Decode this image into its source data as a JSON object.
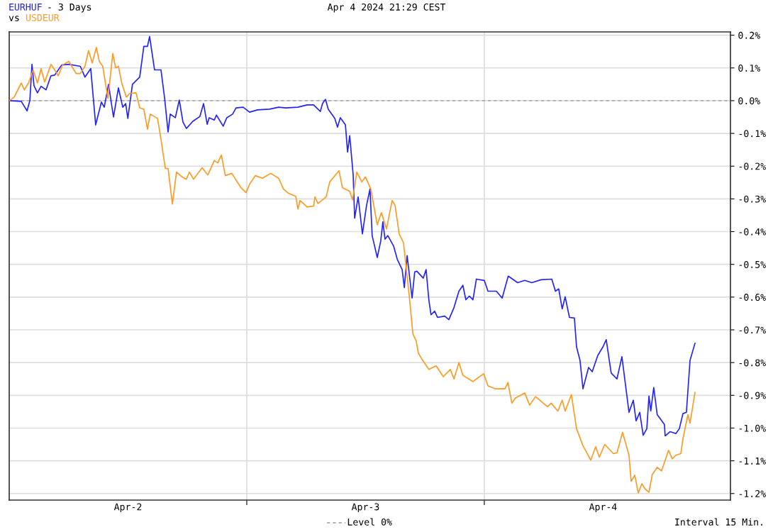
{
  "chart_data": {
    "type": "line",
    "title": "- 3 Days",
    "subtitle": "vs",
    "annotations": [
      "Apr 4 2024 21:29 CEST",
      "Interval 15 Min."
    ],
    "xlim": [
      "2024-04-02T00:00",
      "2024-04-05T00:52"
    ],
    "ylim": [
      -1.22,
      0.21
    ],
    "xticks": [
      {
        "value": "2024-04-02T12:00",
        "label": "Apr-2"
      },
      {
        "value": "2024-04-03T00:00",
        "label": null
      },
      {
        "value": "2024-04-03T12:00",
        "label": "Apr-3"
      },
      {
        "value": "2024-04-04T00:00",
        "label": null
      },
      {
        "value": "2024-04-04T12:00",
        "label": "Apr-4"
      }
    ],
    "yticks": [
      {
        "value": 0.2,
        "label": "0.2%"
      },
      {
        "value": 0.1,
        "label": "0.1%"
      },
      {
        "value": 0,
        "label": "0.0%"
      },
      {
        "value": -0.1,
        "label": "-0.1%"
      },
      {
        "value": -0.2,
        "label": "-0.2%"
      },
      {
        "value": -0.3,
        "label": "-0.3%"
      },
      {
        "value": -0.4,
        "label": "-0.4%"
      },
      {
        "value": -0.5,
        "label": "-0.5%"
      },
      {
        "value": -0.6,
        "label": "-0.6%"
      },
      {
        "value": -0.7,
        "label": "-0.7%"
      },
      {
        "value": -0.8,
        "label": "-0.8%"
      },
      {
        "value": -0.9,
        "label": "-0.9%"
      },
      {
        "value": -1.0,
        "label": "-1.0%"
      },
      {
        "value": -1.1,
        "label": "-1.1%"
      },
      {
        "value": -1.2,
        "label": "-1.2%"
      }
    ],
    "grid": true,
    "marker": "none",
    "line_style": "solid",
    "ref_lines": [
      {
        "axis": "y",
        "value": 0,
        "label": "Level 0%",
        "color": "#999999",
        "line_style": "dashed"
      }
    ],
    "series": [
      {
        "name": "EURHUF",
        "color": "#2222ff",
        "x": [
          "2024-04-02T00:00",
          "2024-04-02T01:13",
          "2024-04-02T01:48",
          "2024-04-02T02:05",
          "2024-04-02T02:18",
          "2024-04-02T02:30",
          "2024-04-02T02:51",
          "2024-04-02T03:13",
          "2024-04-02T03:43",
          "2024-04-02T04:13",
          "2024-04-02T04:35",
          "2024-04-02T05:18",
          "2024-04-02T06:01",
          "2024-04-02T07:11",
          "2024-04-02T07:39",
          "2024-04-02T08:14",
          "2024-04-02T08:44",
          "2024-04-02T09:19",
          "2024-04-02T09:36",
          "2024-04-02T10:02",
          "2024-04-02T10:32",
          "2024-04-02T11:02",
          "2024-04-02T11:28",
          "2024-04-02T11:46",
          "2024-04-02T11:59",
          "2024-04-02T12:27",
          "2024-04-02T13:11",
          "2024-04-02T13:36",
          "2024-04-02T13:58",
          "2024-04-02T14:11",
          "2024-04-02T14:41",
          "2024-04-02T15:20",
          "2024-04-02T15:42",
          "2024-04-02T16:03",
          "2024-04-02T16:16",
          "2024-04-02T16:47",
          "2024-04-02T17:11",
          "2024-04-02T17:33",
          "2024-04-02T17:54",
          "2024-04-02T18:33",
          "2024-04-02T19:16",
          "2024-04-02T19:38",
          "2024-04-02T20:00",
          "2024-04-02T20:12",
          "2024-04-02T20:43",
          "2024-04-02T20:56",
          "2024-04-02T21:37",
          "2024-04-02T21:59",
          "2024-04-02T22:34",
          "2024-04-02T22:55",
          "2024-04-02T23:38",
          "2024-04-03T00:17",
          "2024-04-03T01:05",
          "2024-04-03T02:18",
          "2024-04-03T03:13",
          "2024-04-03T03:56",
          "2024-04-03T05:10",
          "2024-04-03T06:06",
          "2024-04-03T06:45",
          "2024-04-03T07:26",
          "2024-04-03T07:39",
          "2024-04-03T07:57",
          "2024-04-03T08:14",
          "2024-04-03T08:53",
          "2024-04-03T09:10",
          "2024-04-03T09:27",
          "2024-04-03T09:58",
          "2024-04-03T10:11",
          "2024-04-03T10:24",
          "2024-04-03T10:45",
          "2024-04-03T10:54",
          "2024-04-03T11:15",
          "2024-04-03T11:41",
          "2024-04-03T12:06",
          "2024-04-03T12:27",
          "2024-04-03T12:40",
          "2024-04-03T13:11",
          "2024-04-03T13:32",
          "2024-04-03T13:45",
          "2024-04-03T13:58",
          "2024-04-03T14:15",
          "2024-04-03T14:50",
          "2024-04-03T15:12",
          "2024-04-03T15:42",
          "2024-04-03T15:55",
          "2024-04-03T16:12",
          "2024-04-03T16:42",
          "2024-04-03T16:58",
          "2024-04-03T17:11",
          "2024-04-03T17:50",
          "2024-04-03T18:07",
          "2024-04-03T18:24",
          "2024-04-03T18:37",
          "2024-04-03T18:59",
          "2024-04-03T19:16",
          "2024-04-03T20:00",
          "2024-04-03T20:25",
          "2024-04-03T20:56",
          "2024-04-03T21:26",
          "2024-04-03T21:50",
          "2024-04-03T22:08",
          "2024-04-03T22:29",
          "2024-04-03T22:51",
          "2024-04-03T23:12",
          "2024-04-04T00:00",
          "2024-04-04T00:22",
          "2024-04-04T01:13",
          "2024-04-04T01:48",
          "2024-04-04T02:25",
          "2024-04-04T03:22",
          "2024-04-04T04:05",
          "2024-04-04T04:48",
          "2024-04-04T05:44",
          "2024-04-04T06:49",
          "2024-04-04T07:11",
          "2024-04-04T07:31",
          "2024-04-04T07:52",
          "2024-04-04T08:10",
          "2024-04-04T08:36",
          "2024-04-04T09:06",
          "2024-04-04T09:19",
          "2024-04-04T09:40",
          "2024-04-04T09:58",
          "2024-04-04T10:32",
          "2024-04-04T10:54",
          "2024-04-04T11:28",
          "2024-04-04T11:59",
          "2024-04-04T12:19",
          "2024-04-04T12:49",
          "2024-04-04T13:24",
          "2024-04-04T13:54",
          "2024-04-04T14:37",
          "2024-04-04T15:03",
          "2024-04-04T15:20",
          "2024-04-04T15:42",
          "2024-04-04T16:03",
          "2024-04-04T16:25",
          "2024-04-04T16:38",
          "2024-04-04T16:49",
          "2024-04-04T17:07",
          "2024-04-04T17:28",
          "2024-04-04T18:12",
          "2024-04-04T18:16",
          "2024-04-04T18:46",
          "2024-04-04T19:21",
          "2024-04-04T19:42",
          "2024-04-04T20:04",
          "2024-04-04T20:25",
          "2024-04-04T20:47",
          "2024-04-04T21:17"
        ],
        "values": [
          0,
          -0.002,
          -0.031,
          0,
          0.111,
          0.046,
          0.024,
          0.044,
          0.033,
          0.076,
          0.078,
          0.109,
          0.111,
          0.105,
          0.072,
          0.098,
          -0.074,
          -0.004,
          -0.02,
          0.05,
          -0.05,
          0.039,
          -0.02,
          -0.009,
          -0.054,
          0.05,
          0.072,
          0.166,
          0.166,
          0.196,
          0.094,
          0.094,
          0.007,
          -0.096,
          -0.041,
          -0.052,
          0.002,
          -0.065,
          -0.085,
          -0.063,
          -0.048,
          -0.009,
          -0.072,
          -0.052,
          -0.059,
          -0.044,
          -0.078,
          -0.052,
          -0.041,
          -0.022,
          -0.02,
          -0.035,
          -0.028,
          -0.026,
          -0.02,
          -0.022,
          -0.02,
          -0.013,
          -0.013,
          -0.033,
          -0.009,
          0.004,
          -0.026,
          -0.054,
          -0.081,
          -0.052,
          -0.074,
          -0.157,
          -0.107,
          -0.227,
          -0.359,
          -0.294,
          -0.407,
          -0.32,
          -0.27,
          -0.412,
          -0.479,
          -0.429,
          -0.37,
          -0.423,
          -0.412,
          -0.444,
          -0.484,
          -0.516,
          -0.571,
          -0.473,
          -0.603,
          -0.523,
          -0.521,
          -0.542,
          -0.516,
          -0.61,
          -0.654,
          -0.643,
          -0.662,
          -0.658,
          -0.669,
          -0.632,
          -0.582,
          -0.564,
          -0.608,
          -0.597,
          -0.608,
          -0.545,
          -0.549,
          -0.582,
          -0.582,
          -0.603,
          -0.536,
          -0.556,
          -0.549,
          -0.556,
          -0.547,
          -0.545,
          -0.582,
          -0.575,
          -0.636,
          -0.599,
          -0.662,
          -0.664,
          -0.752,
          -0.793,
          -0.88,
          -0.815,
          -0.828,
          -0.778,
          -0.752,
          -0.73,
          -0.832,
          -0.85,
          -0.782,
          -0.952,
          -0.915,
          -0.978,
          -0.952,
          -1.022,
          -1.002,
          -0.902,
          -0.948,
          -0.876,
          -0.959,
          -0.989,
          -1.024,
          -1.011,
          -1.017,
          -1.002,
          -0.956,
          -0.952,
          -0.793,
          -0.741
        ]
      },
      {
        "name": "USDEUR",
        "color": "#ff9922",
        "x": [
          "2024-04-02T00:00",
          "2024-04-02T00:30",
          "2024-04-02T01:13",
          "2024-04-02T01:31",
          "2024-04-02T01:57",
          "2024-04-02T02:25",
          "2024-04-02T02:51",
          "2024-04-02T03:13",
          "2024-04-02T03:35",
          "2024-04-02T04:13",
          "2024-04-02T04:35",
          "2024-04-02T04:57",
          "2024-04-02T05:23",
          "2024-04-02T06:01",
          "2024-04-02T06:45",
          "2024-04-02T07:11",
          "2024-04-02T07:39",
          "2024-04-02T08:01",
          "2024-04-02T08:23",
          "2024-04-02T08:48",
          "2024-04-02T09:06",
          "2024-04-02T09:27",
          "2024-04-02T09:58",
          "2024-04-02T10:28",
          "2024-04-02T10:45",
          "2024-04-02T11:02",
          "2024-04-02T11:24",
          "2024-04-02T11:50",
          "2024-04-02T12:10",
          "2024-04-02T12:49",
          "2024-04-02T13:11",
          "2024-04-02T13:36",
          "2024-04-02T13:58",
          "2024-04-02T14:15",
          "2024-04-02T14:59",
          "2024-04-02T15:20",
          "2024-04-02T15:46",
          "2024-04-02T16:03",
          "2024-04-02T16:29",
          "2024-04-02T16:54",
          "2024-04-02T17:28",
          "2024-04-02T17:54",
          "2024-04-02T18:12",
          "2024-04-02T18:37",
          "2024-04-02T19:29",
          "2024-04-02T20:04",
          "2024-04-02T20:43",
          "2024-04-02T21:04",
          "2024-04-02T21:26",
          "2024-04-02T21:50",
          "2024-04-02T22:29",
          "2024-04-02T23:25",
          "2024-04-02T23:56",
          "2024-04-03T00:17",
          "2024-04-03T00:52",
          "2024-04-03T01:35",
          "2024-04-03T02:25",
          "2024-04-03T03:13",
          "2024-04-03T03:43",
          "2024-04-03T04:13",
          "2024-04-03T04:57",
          "2024-04-03T05:10",
          "2024-04-03T05:23",
          "2024-04-03T06:06",
          "2024-04-03T06:45",
          "2024-04-03T06:53",
          "2024-04-03T07:11",
          "2024-04-03T08:01",
          "2024-04-03T08:23",
          "2024-04-03T09:19",
          "2024-04-03T09:40",
          "2024-04-03T10:24",
          "2024-04-03T10:41",
          "2024-04-03T11:07",
          "2024-04-03T11:37",
          "2024-04-03T11:59",
          "2024-04-03T12:32",
          "2024-04-03T13:11",
          "2024-04-03T13:36",
          "2024-04-03T14:07",
          "2024-04-03T14:41",
          "2024-04-03T14:59",
          "2024-04-03T15:24",
          "2024-04-03T15:50",
          "2024-04-03T16:25",
          "2024-04-03T16:47",
          "2024-04-03T17:07",
          "2024-04-03T17:20",
          "2024-04-03T17:41",
          "2024-04-03T18:24",
          "2024-04-03T19:08",
          "2024-04-03T19:51",
          "2024-04-03T20:34",
          "2024-04-03T20:56",
          "2024-04-03T21:26",
          "2024-04-03T21:50",
          "2024-04-03T22:51",
          "2024-04-03T23:12",
          "2024-04-03T23:56",
          "2024-04-04T00:22",
          "2024-04-04T01:05",
          "2024-04-04T02:05",
          "2024-04-04T02:23",
          "2024-04-04T02:47",
          "2024-04-04T03:09",
          "2024-04-04T04:05",
          "2024-04-04T04:35",
          "2024-04-04T05:10",
          "2024-04-04T06:23",
          "2024-04-04T06:45",
          "2024-04-04T07:26",
          "2024-04-04T07:52",
          "2024-04-04T08:10",
          "2024-04-04T08:48",
          "2024-04-04T09:19",
          "2024-04-04T09:58",
          "2024-04-04T10:45",
          "2024-04-04T11:15",
          "2024-04-04T11:37",
          "2024-04-04T12:10",
          "2024-04-04T13:02",
          "2024-04-04T13:24",
          "2024-04-04T13:58",
          "2024-04-04T14:37",
          "2024-04-04T14:50",
          "2024-04-04T15:12",
          "2024-04-04T15:33",
          "2024-04-04T15:55",
          "2024-04-04T16:16",
          "2024-04-04T16:38",
          "2024-04-04T16:58",
          "2024-04-04T17:28",
          "2024-04-04T17:54",
          "2024-04-04T18:37",
          "2024-04-04T18:59",
          "2024-04-04T19:21",
          "2024-04-04T19:51",
          "2024-04-04T20:04",
          "2024-04-04T20:34",
          "2024-04-04T20:47",
          "2024-04-04T21:17"
        ],
        "values": [
          0,
          0.011,
          0.054,
          0.033,
          0.054,
          0.094,
          0.054,
          0.098,
          0.057,
          0.111,
          0.094,
          0.076,
          0.109,
          0.12,
          0.083,
          0.083,
          0.105,
          0.153,
          0.115,
          0.163,
          0.12,
          0.105,
          0.007,
          0.144,
          0.1,
          0.105,
          0.05,
          0.011,
          0.022,
          0.024,
          -0.022,
          -0.026,
          -0.087,
          -0.041,
          -0.054,
          -0.118,
          -0.207,
          -0.207,
          -0.316,
          -0.218,
          -0.233,
          -0.24,
          -0.218,
          -0.24,
          -0.205,
          -0.227,
          -0.183,
          -0.19,
          -0.166,
          -0.229,
          -0.222,
          -0.266,
          -0.281,
          -0.255,
          -0.229,
          -0.237,
          -0.222,
          -0.237,
          -0.27,
          -0.283,
          -0.292,
          -0.331,
          -0.305,
          -0.325,
          -0.322,
          -0.294,
          -0.314,
          -0.294,
          -0.248,
          -0.214,
          -0.266,
          -0.277,
          -0.303,
          -0.218,
          -0.248,
          -0.233,
          -0.27,
          -0.379,
          -0.342,
          -0.392,
          -0.305,
          -0.32,
          -0.407,
          -0.434,
          -0.597,
          -0.712,
          -0.734,
          -0.771,
          -0.789,
          -0.821,
          -0.81,
          -0.843,
          -0.821,
          -0.85,
          -0.8,
          -0.839,
          -0.858,
          -0.85,
          -0.834,
          -0.871,
          -0.88,
          -0.88,
          -0.861,
          -0.924,
          -0.908,
          -0.893,
          -0.93,
          -0.904,
          -0.935,
          -0.924,
          -0.948,
          -0.915,
          -0.948,
          -0.898,
          -1.002,
          -1.054,
          -1.098,
          -1.057,
          -1.089,
          -1.05,
          -1.078,
          -1.076,
          -1.013,
          -1.083,
          -1.163,
          -1.144,
          -1.198,
          -1.17,
          -1.187,
          -1.196,
          -1.142,
          -1.12,
          -1.131,
          -1.068,
          -1.094,
          -1.083,
          -1.078,
          -1.033,
          -0.959,
          -0.985,
          -0.891
        ]
      }
    ]
  }
}
